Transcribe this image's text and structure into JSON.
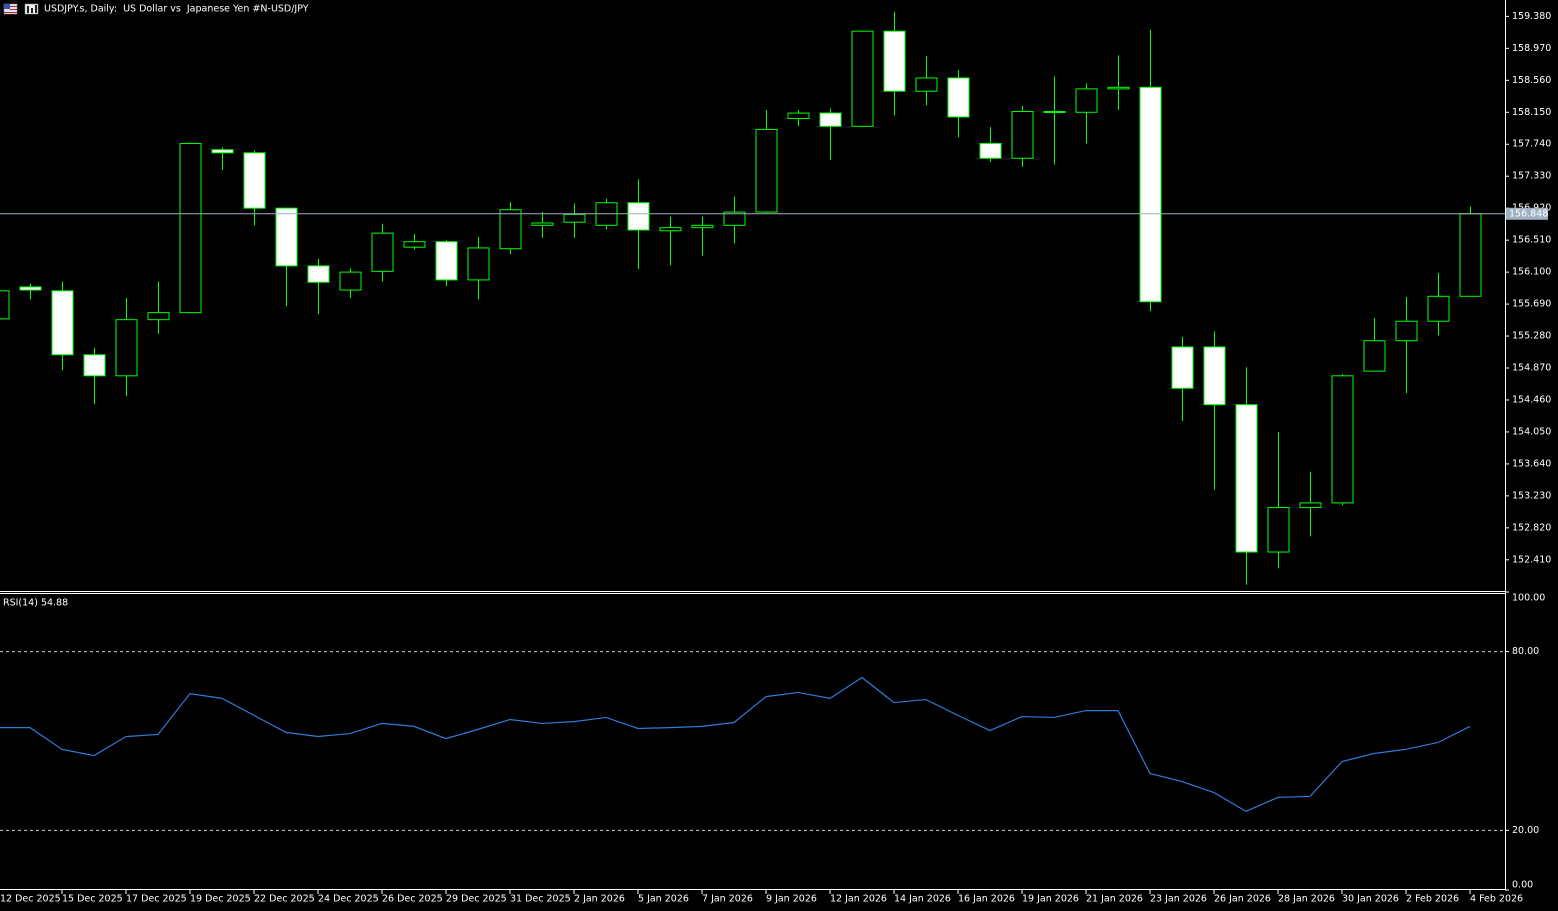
{
  "chart_data": [
    {
      "type": "candlestick",
      "title": "USDJPY.s, Daily:  US Dollar vs  Japanese Yen #N-USD/JPY",
      "categories": [
        "12 Dec 2025",
        null,
        "15 Dec 2025",
        null,
        "17 Dec 2025",
        null,
        "19 Dec 2025",
        null,
        "22 Dec 2025",
        null,
        "24 Dec 2025",
        null,
        "26 Dec 2025",
        null,
        "29 Dec 2025",
        null,
        "31 Dec 2025",
        null,
        "2 Jan 2026",
        null,
        "5 Jan 2026",
        null,
        "7 Jan 2026",
        null,
        "9 Jan 2026",
        null,
        "12 Jan 2026",
        null,
        "14 Jan 2026",
        null,
        "16 Jan 2026",
        null,
        "19 Jan 2026",
        null,
        "21 Jan 2026",
        null,
        "23 Jan 2026",
        null,
        "26 Jan 2026",
        null,
        "28 Jan 2026",
        null,
        "30 Jan 2026",
        null,
        "2 Feb 2026",
        null,
        "4 Feb 2026"
      ],
      "open": [
        155.5,
        155.91,
        155.86,
        155.04,
        154.77,
        155.49,
        155.58,
        157.67,
        157.63,
        156.92,
        156.18,
        155.87,
        156.11,
        156.42,
        156.49,
        156.0,
        156.4,
        156.7,
        156.74,
        156.7,
        156.99,
        156.63,
        156.67,
        156.7,
        156.87,
        158.07,
        158.14,
        157.97,
        159.19,
        158.42,
        158.59,
        157.75,
        157.56,
        158.15,
        158.15,
        158.45,
        158.47,
        155.14,
        155.14,
        154.4,
        152.51,
        153.08,
        153.14,
        154.83,
        155.22,
        155.47,
        155.79
      ],
      "high": [
        155.88,
        155.95,
        155.98,
        155.13,
        155.77,
        155.98,
        157.76,
        157.7,
        157.66,
        156.92,
        156.27,
        156.15,
        156.72,
        156.59,
        156.51,
        156.55,
        157.0,
        156.87,
        156.98,
        157.04,
        157.29,
        156.81,
        156.81,
        157.07,
        158.18,
        158.18,
        158.2,
        159.2,
        159.44,
        158.87,
        158.69,
        157.96,
        158.23,
        158.61,
        158.52,
        158.88,
        159.21,
        155.27,
        155.34,
        154.88,
        154.05,
        153.54,
        154.79,
        155.51,
        155.78,
        156.09,
        156.94
      ],
      "low": [
        155.48,
        155.75,
        154.84,
        154.41,
        154.51,
        155.31,
        155.57,
        157.41,
        156.7,
        155.66,
        155.56,
        155.77,
        155.98,
        156.39,
        155.92,
        155.75,
        156.33,
        156.54,
        156.54,
        156.65,
        156.14,
        156.19,
        156.31,
        156.47,
        156.86,
        157.97,
        157.54,
        157.96,
        158.11,
        158.24,
        157.83,
        157.51,
        157.45,
        157.48,
        157.75,
        158.18,
        155.6,
        154.19,
        153.31,
        152.09,
        152.3,
        152.71,
        153.11,
        154.83,
        154.55,
        155.29,
        155.79
      ],
      "close": [
        155.86,
        155.87,
        155.04,
        154.77,
        155.49,
        155.58,
        157.75,
        157.63,
        156.92,
        156.18,
        155.97,
        156.1,
        156.6,
        156.49,
        156.0,
        156.41,
        156.9,
        156.73,
        156.84,
        156.99,
        156.64,
        156.67,
        156.7,
        156.87,
        157.93,
        158.14,
        157.97,
        159.19,
        158.42,
        158.59,
        158.09,
        157.56,
        158.16,
        158.16,
        158.45,
        158.47,
        155.72,
        154.61,
        154.4,
        152.51,
        153.08,
        153.14,
        154.77,
        155.22,
        155.47,
        155.79,
        156.848
      ],
      "up_color": "#000000",
      "down_color": "#ffffff",
      "outline_color": "#00ff00",
      "ylim": [
        152.01,
        159.59
      ],
      "yticks": [
        {
          "value": 159.38,
          "label": "159.380"
        },
        {
          "value": 158.97,
          "label": "158.970"
        },
        {
          "value": 158.56,
          "label": "158.560"
        },
        {
          "value": 158.15,
          "label": "158.150"
        },
        {
          "value": 157.74,
          "label": "157.740"
        },
        {
          "value": 157.33,
          "label": "157.330"
        },
        {
          "value": 156.92,
          "label": "156.920"
        },
        {
          "value": 156.51,
          "label": "156.510"
        },
        {
          "value": 156.1,
          "label": "156.100"
        },
        {
          "value": 155.69,
          "label": "155.690"
        },
        {
          "value": 155.28,
          "label": "155.280"
        },
        {
          "value": 154.87,
          "label": "154.870"
        },
        {
          "value": 154.46,
          "label": "154.460"
        },
        {
          "value": 154.05,
          "label": "154.050"
        },
        {
          "value": 153.64,
          "label": "153.640"
        },
        {
          "value": 153.23,
          "label": "153.230"
        },
        {
          "value": 152.82,
          "label": "152.820"
        },
        {
          "value": 152.41,
          "label": "152.410"
        }
      ],
      "last_price": 156.848,
      "last_price_color": "#9fb0c2"
    },
    {
      "type": "line",
      "title": "RSI(14) 54.88",
      "values": [
        54.5,
        54.5,
        47.2,
        45.1,
        51.5,
        52.2,
        65.9,
        64.3,
        58.6,
        52.9,
        51.5,
        52.5,
        55.9,
        54.9,
        50.8,
        53.9,
        57.2,
        55.9,
        56.5,
        57.9,
        54.2,
        54.5,
        54.9,
        56.2,
        64.9,
        66.3,
        64.3,
        71.3,
        62.9,
        63.9,
        58.6,
        53.5,
        58.2,
        57.9,
        60.2,
        60.2,
        39.1,
        36.4,
        32.7,
        26.4,
        31.1,
        31.4,
        43.1,
        45.8,
        47.2,
        49.5,
        54.88
      ],
      "color": "#2f7bd8",
      "ylim": [
        0,
        100
      ],
      "yticks": [
        {
          "value": 100,
          "label": "100.00"
        },
        {
          "value": 80,
          "label": "80.00"
        },
        {
          "value": 20,
          "label": "20.00"
        },
        {
          "value": 0,
          "label": "0.00"
        }
      ]
    }
  ]
}
